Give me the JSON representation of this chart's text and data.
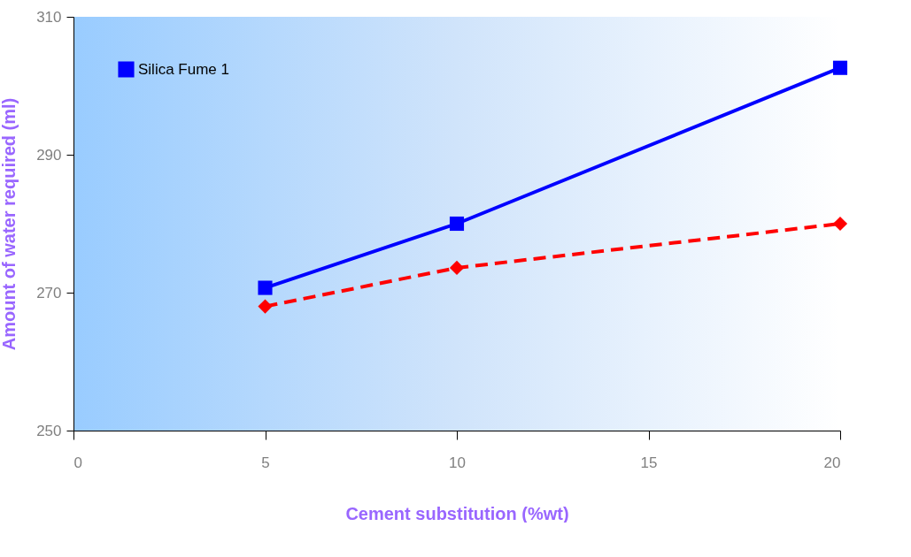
{
  "chart_data": {
    "type": "line",
    "xlabel": "Cement substitution (%wt)",
    "ylabel": "Amount of water required (ml)",
    "x": [
      5,
      10,
      20
    ],
    "series": [
      {
        "color": "#ff0000",
        "values": [
          268,
          273.6,
          280
        ],
        "marker": "diamond",
        "line_style": "dashed"
      },
      {
        "name": "Silica Fume 1",
        "color": "#0000ff",
        "values": [
          270.7,
          280,
          302.6
        ],
        "marker": "square",
        "line_style": "solid"
      }
    ],
    "xlim": [
      0,
      20
    ],
    "xticks": [
      0,
      5,
      10,
      15,
      20
    ],
    "ylim": [
      250,
      310
    ],
    "yticks": [
      250,
      270,
      290,
      310
    ],
    "grid": false,
    "legend": "top left"
  }
}
